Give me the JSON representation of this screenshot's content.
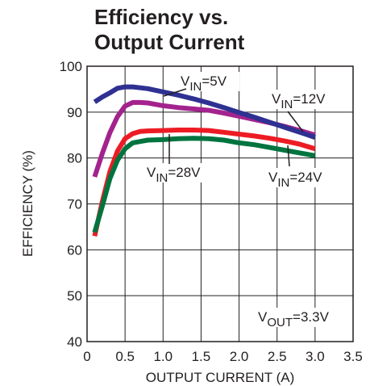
{
  "chart_data": {
    "type": "line",
    "title_lines": [
      "Efficiency vs.",
      "Output Current"
    ],
    "xlabel": "OUTPUT CURRENT (A)",
    "ylabel": "EFFICIENCY (%)",
    "xlim": [
      0,
      3.5
    ],
    "ylim": [
      40,
      100
    ],
    "xticks": [
      "0",
      "0.5",
      "1.0",
      "1.5",
      "2.0",
      "2.5",
      "3.0",
      "3.5"
    ],
    "yticks": [
      "40",
      "50",
      "60",
      "70",
      "80",
      "90",
      "100"
    ],
    "grid": true,
    "series": [
      {
        "name": "VIN=5V",
        "color": "#2e3192",
        "x": [
          0.1,
          0.2,
          0.3,
          0.4,
          0.5,
          0.6,
          0.7,
          0.8,
          1.0,
          1.2,
          1.4,
          1.6,
          1.8,
          2.0,
          2.2,
          2.4,
          2.6,
          2.8,
          3.0
        ],
        "y": [
          92.2,
          93.3,
          94.2,
          95.2,
          95.5,
          95.5,
          95.3,
          95.1,
          94.4,
          93.7,
          92.9,
          92.0,
          91.0,
          89.9,
          88.9,
          87.8,
          86.7,
          85.6,
          84.5
        ]
      },
      {
        "name": "VIN=12V",
        "color": "#a3238e",
        "x": [
          0.1,
          0.2,
          0.3,
          0.4,
          0.5,
          0.6,
          0.7,
          0.8,
          1.0,
          1.2,
          1.4,
          1.6,
          1.8,
          2.0,
          2.2,
          2.4,
          2.6,
          2.8,
          3.0
        ],
        "y": [
          75.9,
          81.0,
          85.5,
          89.0,
          91.3,
          92.1,
          92.1,
          92.0,
          91.4,
          91.0,
          90.7,
          90.4,
          89.8,
          89.1,
          88.4,
          87.7,
          86.9,
          86.0,
          85.0
        ]
      },
      {
        "name": "VIN=24V",
        "color": "#ed1c24",
        "x": [
          0.1,
          0.2,
          0.3,
          0.4,
          0.5,
          0.6,
          0.7,
          0.8,
          1.0,
          1.2,
          1.4,
          1.6,
          1.8,
          2.0,
          2.2,
          2.4,
          2.6,
          2.8,
          3.0
        ],
        "y": [
          63.0,
          70.5,
          77.0,
          81.5,
          84.2,
          85.3,
          85.8,
          85.9,
          86.0,
          86.1,
          86.1,
          86.0,
          85.6,
          85.2,
          84.8,
          84.3,
          83.7,
          83.0,
          82.0
        ]
      },
      {
        "name": "VIN=28V",
        "color": "#00743f",
        "x": [
          0.1,
          0.2,
          0.3,
          0.4,
          0.5,
          0.6,
          0.7,
          0.8,
          1.0,
          1.2,
          1.4,
          1.6,
          1.8,
          2.0,
          2.2,
          2.4,
          2.6,
          2.8,
          3.0
        ],
        "y": [
          63.8,
          69.5,
          75.5,
          79.5,
          82.0,
          83.3,
          83.6,
          83.9,
          84.0,
          84.2,
          84.3,
          84.2,
          83.9,
          83.3,
          82.9,
          82.3,
          81.7,
          81.1,
          80.5
        ]
      }
    ],
    "annotations": [
      {
        "main": "V",
        "sub": "IN",
        "rest": "=5V",
        "series": "VIN=5V"
      },
      {
        "main": "V",
        "sub": "IN",
        "rest": "=12V",
        "series": "VIN=12V"
      },
      {
        "main": "V",
        "sub": "IN",
        "rest": "=28V",
        "series": "VIN=28V"
      },
      {
        "main": "V",
        "sub": "IN",
        "rest": "=24V",
        "series": "VIN=24V"
      },
      {
        "main": "V",
        "sub": "OUT",
        "rest": "=3.3V",
        "series": ""
      }
    ]
  }
}
